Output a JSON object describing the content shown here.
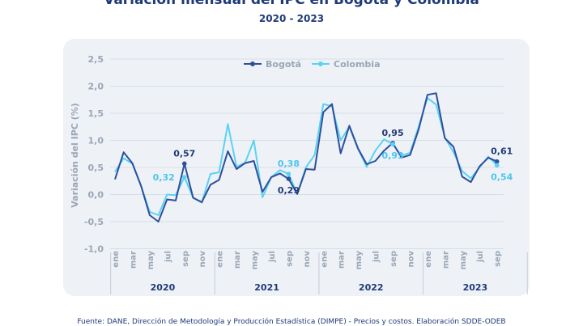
{
  "chart_data": {
    "type": "line",
    "title": "Variación mensual del IPC en Bogotá y Colombia",
    "subtitle": "2020 - 2023",
    "ylabel": "Variación del IPC (%)",
    "xlabel": "",
    "ylim": [
      -1.0,
      2.5
    ],
    "yticks": [
      "2,5",
      "2,0",
      "1,5",
      "1,0",
      "0,5",
      "0,0",
      "-0,5",
      "-1,0"
    ],
    "ytick_values": [
      2.5,
      2.0,
      1.5,
      1.0,
      0.5,
      0.0,
      -0.5,
      -1.0
    ],
    "month_ticks": [
      "ene",
      "mar",
      "may",
      "jul",
      "sep",
      "nov",
      "ene",
      "mar",
      "may",
      "jul",
      "sep",
      "nov",
      "ene",
      "mar",
      "may",
      "jul",
      "sep",
      "nov",
      "ene",
      "mar",
      "may",
      "jul",
      "sep"
    ],
    "month_tick_index": [
      0,
      2,
      4,
      6,
      8,
      10,
      12,
      14,
      16,
      18,
      20,
      22,
      24,
      26,
      28,
      30,
      32,
      34,
      36,
      38,
      40,
      42,
      44
    ],
    "years": [
      "2020",
      "2021",
      "2022",
      "2023"
    ],
    "grid": true,
    "legend_position": "top-center",
    "series": [
      {
        "name": "Bogotá",
        "color": "#2e4f9b",
        "values": [
          0.28,
          0.78,
          0.58,
          0.16,
          -0.38,
          -0.5,
          -0.09,
          -0.11,
          0.57,
          -0.06,
          -0.14,
          0.18,
          0.27,
          0.8,
          0.47,
          0.58,
          0.62,
          0.05,
          0.32,
          0.39,
          0.29,
          0.01,
          0.47,
          0.46,
          1.52,
          1.67,
          0.76,
          1.27,
          0.85,
          0.56,
          0.62,
          0.81,
          0.95,
          0.68,
          0.73,
          1.21,
          1.84,
          1.87,
          1.04,
          0.88,
          0.33,
          0.23,
          0.52,
          0.68,
          0.61
        ]
      },
      {
        "name": "Colombia",
        "color": "#5ad2f4",
        "values": [
          0.42,
          0.67,
          0.57,
          0.16,
          -0.32,
          -0.38,
          0.0,
          -0.01,
          0.32,
          -0.06,
          -0.15,
          0.38,
          0.41,
          1.3,
          0.51,
          0.59,
          1.0,
          -0.05,
          0.32,
          0.45,
          0.38,
          0.01,
          0.5,
          0.73,
          1.67,
          1.63,
          1.0,
          1.25,
          0.84,
          0.51,
          0.81,
          1.02,
          0.93,
          0.72,
          0.77,
          1.26,
          1.78,
          1.66,
          1.05,
          0.78,
          0.43,
          0.3,
          0.5,
          0.7,
          0.54
        ]
      }
    ],
    "annotations": [
      {
        "text": "0,57",
        "series": 0,
        "index": 8,
        "placement": "above"
      },
      {
        "text": "0,32",
        "series": 1,
        "index": 8,
        "placement": "left"
      },
      {
        "text": "0,38",
        "series": 1,
        "index": 20,
        "placement": "above"
      },
      {
        "text": "0,29",
        "series": 0,
        "index": 20,
        "placement": "below"
      },
      {
        "text": "0,95",
        "series": 0,
        "index": 32,
        "placement": "above"
      },
      {
        "text": "0,93",
        "series": 1,
        "index": 32,
        "placement": "below"
      },
      {
        "text": "0,61",
        "series": 0,
        "index": 44,
        "placement": "above"
      },
      {
        "text": "0,54",
        "series": 1,
        "index": 44,
        "placement": "below"
      }
    ]
  },
  "source_text": "Fuente: DANE, Dirección de Metodología y Producción Estadística (DIMPE) - Precios y costos. Elaboración SDDE-ODEB"
}
